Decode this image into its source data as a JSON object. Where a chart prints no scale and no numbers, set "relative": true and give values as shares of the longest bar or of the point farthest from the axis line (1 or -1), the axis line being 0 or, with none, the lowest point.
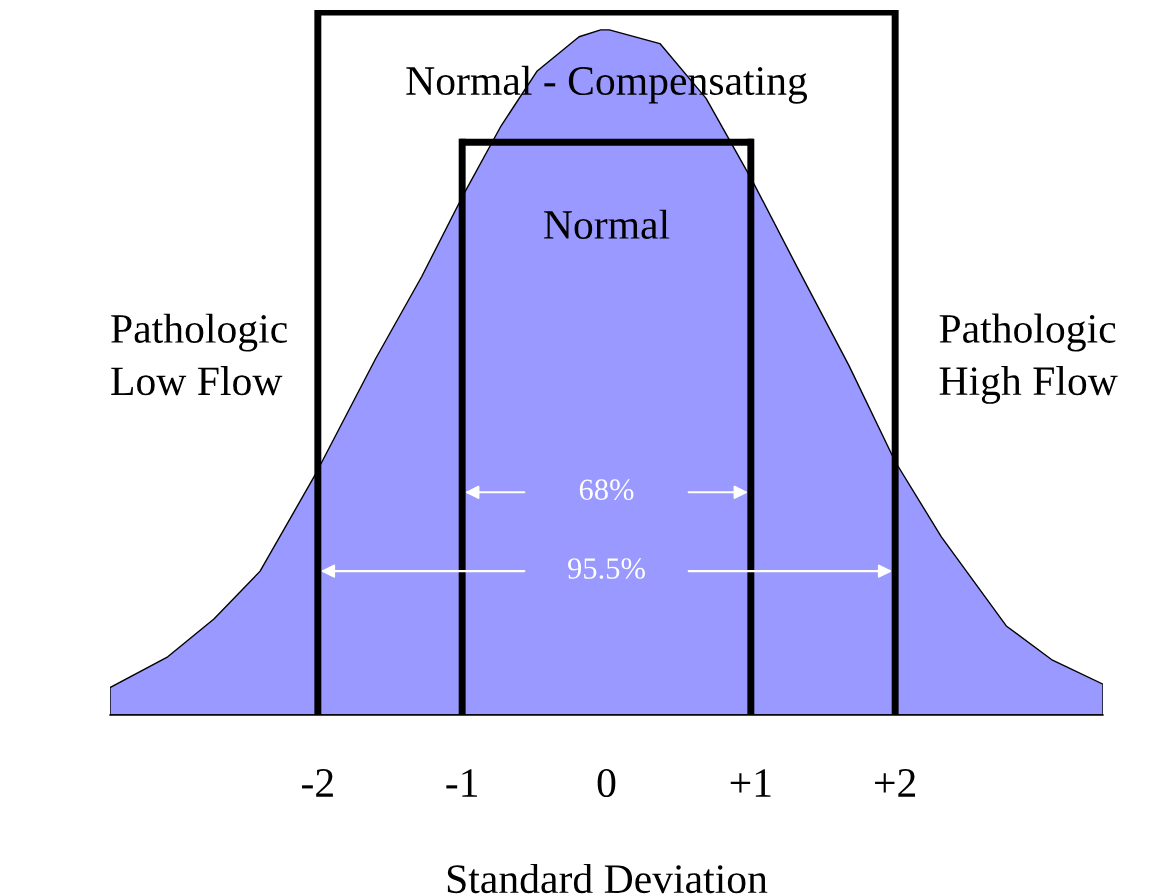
{
  "chart_data": {
    "type": "area",
    "relative": true,
    "xlabel": "Standard Deviation",
    "x": [
      -3.44,
      -3.04,
      -2.72,
      -2.4,
      -2.02,
      -1.6,
      -1.28,
      -0.99,
      -0.73,
      -0.48,
      -0.19,
      -0.04,
      0.02,
      0.37,
      0.69,
      1.01,
      1.33,
      1.68,
      2.0,
      2.32,
      2.77,
      3.09,
      3.44
    ],
    "series": [
      {
        "color": "#9999ff",
        "values": [
          0.04,
          0.085,
          0.14,
          0.21,
          0.35,
          0.52,
          0.64,
          0.76,
          0.86,
          0.94,
          0.99,
          1.0,
          1.0,
          0.98,
          0.9,
          0.78,
          0.65,
          0.51,
          0.37,
          0.26,
          0.13,
          0.08,
          0.045
        ]
      }
    ],
    "xlim": [
      -3.44,
      3.44
    ],
    "xticks": [
      {
        "value": -2,
        "label": "-2"
      },
      {
        "value": -1,
        "label": "-1"
      },
      0,
      {
        "value": 1,
        "label": "+1"
      },
      {
        "value": 2,
        "label": "+2"
      }
    ],
    "ref_lines": [
      {
        "axis": "x",
        "value": -2,
        "color": "#000000",
        "line_style": "solid"
      },
      {
        "axis": "x",
        "value": -1,
        "color": "#000000",
        "line_style": "solid"
      },
      {
        "axis": "x",
        "value": 1,
        "color": "#000000",
        "line_style": "solid"
      },
      {
        "axis": "x",
        "value": 2,
        "color": "#000000",
        "line_style": "solid"
      }
    ],
    "annotations": [
      "Normal - Compensating",
      "Normal",
      "Pathologic\nLow Flow",
      "Pathologic\nHigh Flow",
      "68%",
      "95.5%"
    ],
    "grid": false,
    "legend": false
  }
}
